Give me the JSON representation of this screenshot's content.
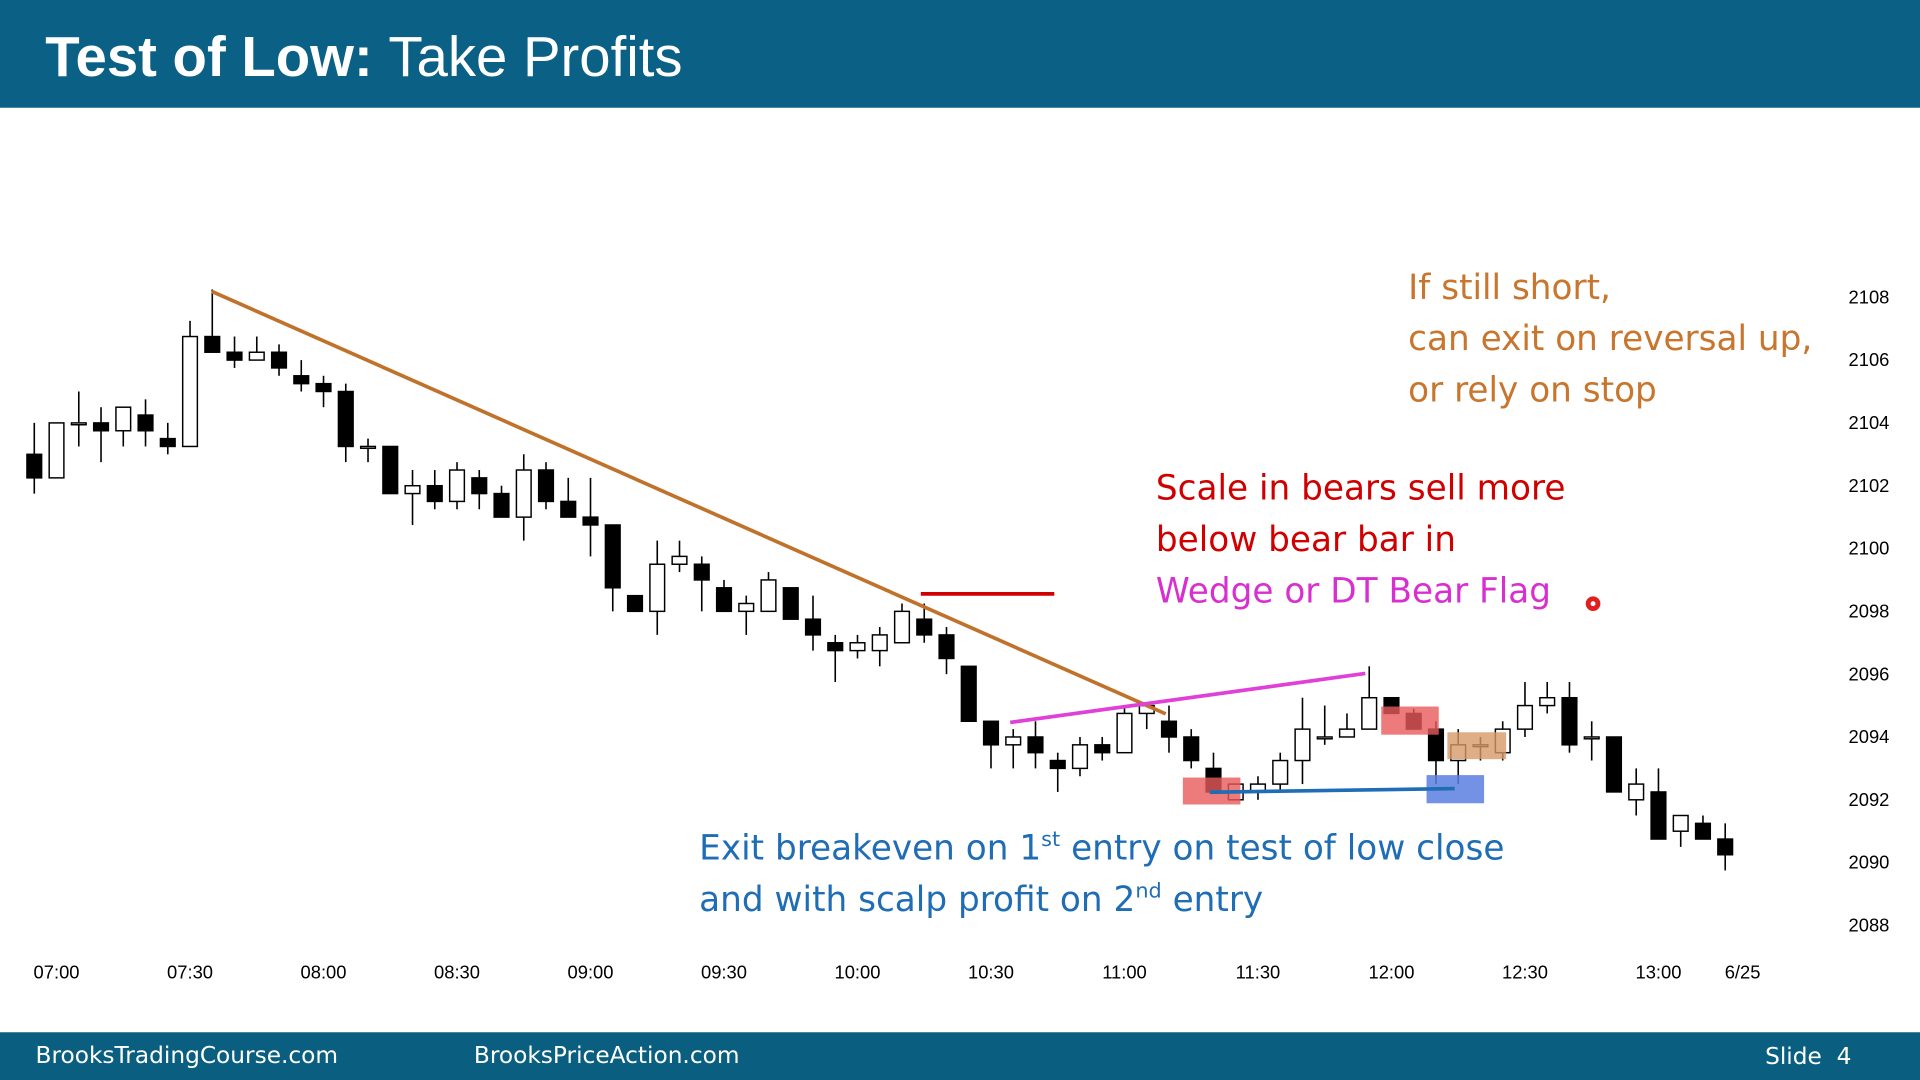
{
  "header": {
    "title_bold": "Test of Low:",
    "title_rest": "Take Profits"
  },
  "chart_data": {
    "type": "candlestick",
    "categories": [
      null,
      "07:00",
      null,
      null,
      null,
      null,
      null,
      "07:30",
      null,
      null,
      null,
      null,
      null,
      "08:00",
      null,
      null,
      null,
      null,
      null,
      "08:30",
      null,
      null,
      null,
      null,
      null,
      "09:00",
      null,
      null,
      null,
      null,
      null,
      "09:30",
      null,
      null,
      null,
      null,
      null,
      "10:00",
      null,
      null,
      null,
      null,
      null,
      "10:30",
      null,
      null,
      null,
      null,
      null,
      "11:00",
      null,
      null,
      null,
      null,
      null,
      "11:30",
      null,
      null,
      null,
      null,
      null,
      "12:00",
      null,
      null,
      null,
      null,
      null,
      "12:30",
      null,
      null,
      null,
      null,
      null,
      "13:00",
      null,
      null,
      null,
      "6/25"
    ],
    "open": [
      2103,
      2102.25,
      2104,
      2104,
      2103.75,
      2104.25,
      2103.5,
      2103.25,
      2106.75,
      2106.25,
      2106,
      2106.25,
      2105.5,
      2105.25,
      2105,
      2103.25,
      2103.25,
      2101.75,
      2102,
      2101.5,
      2102.25,
      2101.75,
      2101,
      2102.5,
      2101.5,
      2101,
      2100.75,
      2098.5,
      2098,
      2099.5,
      2099.5,
      2098.75,
      2098,
      2098,
      2098.75,
      2097.75,
      2097,
      2096.75,
      2096.75,
      2097,
      2097.75,
      2097.25,
      2096.25,
      2094.5,
      2093.75,
      2094,
      2093.25,
      2093,
      2093.75,
      2093.5,
      2094.75,
      2094.5,
      2094,
      2093,
      2092,
      2092.25,
      2092.5,
      2093.25,
      2094,
      2094,
      2094.25,
      2095.25,
      2094.75,
      2094.25,
      2093.25,
      2093.75,
      2093.5,
      2094.25,
      2095,
      2095.25,
      2094,
      2094,
      2092,
      2092.25,
      2091,
      2091.25,
      2090.75,
      null
    ],
    "high": [
      2104,
      2104,
      2105,
      2104.5,
      2104.5,
      2104.75,
      2104,
      2107.25,
      2108.25,
      2106.75,
      2106.75,
      2106.5,
      2106,
      2105.5,
      2105.25,
      2103.5,
      2103.25,
      2102.5,
      2102.5,
      2102.75,
      2102.5,
      2102,
      2103,
      2102.75,
      2102.25,
      2102.25,
      2100.75,
      2098.5,
      2100.25,
      2100.25,
      2099.75,
      2099,
      2098.5,
      2099.25,
      2098.75,
      2098.5,
      2097.25,
      2097.25,
      2097.5,
      2098.25,
      2098.25,
      2097.5,
      2096.25,
      2094.5,
      2094.25,
      2094.5,
      2093.5,
      2094,
      2094,
      2095,
      2095,
      2095,
      2094.25,
      2093.5,
      2092.5,
      2092.75,
      2093.5,
      2095.25,
      2095,
      2094.75,
      2096.25,
      2095.25,
      2094.9,
      2094.5,
      2094.25,
      2094,
      2094.5,
      2095.75,
      2095.75,
      2095.75,
      2094.5,
      2094,
      2093,
      2093,
      2091.5,
      2091.5,
      2091.25,
      null
    ],
    "low": [
      2101.75,
      2102.25,
      2103.25,
      2102.75,
      2103.25,
      2103.25,
      2103,
      2103.25,
      2106.25,
      2105.75,
      2106,
      2105.5,
      2105,
      2104.5,
      2102.75,
      2102.75,
      2101.75,
      2100.75,
      2101.25,
      2101.25,
      2101.25,
      2101,
      2100.25,
      2101.25,
      2101,
      2099.75,
      2098,
      2098,
      2097.25,
      2099.25,
      2098,
      2098,
      2097.25,
      2098,
      2097.75,
      2096.75,
      2095.75,
      2096.5,
      2096.25,
      2097,
      2097,
      2096,
      2094.5,
      2093,
      2093,
      2093,
      2092.25,
      2092.75,
      2093.25,
      2093.5,
      2094.25,
      2093.5,
      2093,
      2092.25,
      2092,
      2092,
      2092.25,
      2092.5,
      2093.75,
      2094,
      2094.25,
      2094.75,
      2094.25,
      2092.5,
      2092.5,
      2093.25,
      2093.25,
      2094,
      2094.75,
      2093.5,
      2093.25,
      2092.25,
      2091.5,
      2090.75,
      2090.5,
      2090.75,
      2089.75,
      null
    ],
    "close": [
      2102.25,
      2104,
      2104,
      2103.75,
      2104.5,
      2103.75,
      2103.25,
      2106.75,
      2106.25,
      2106,
      2106.25,
      2105.75,
      2105.25,
      2105,
      2103.25,
      2103.25,
      2101.75,
      2102,
      2101.5,
      2102.5,
      2101.75,
      2101,
      2102.5,
      2101.5,
      2101,
      2100.75,
      2098.75,
      2098,
      2099.5,
      2099.75,
      2099,
      2098,
      2098.25,
      2099,
      2097.75,
      2097.25,
      2096.75,
      2097,
      2097.25,
      2098,
      2097.25,
      2096.5,
      2094.5,
      2093.75,
      2094,
      2093.5,
      2093,
      2093.75,
      2093.5,
      2094.75,
      2095,
      2094,
      2093.25,
      2092.25,
      2092.5,
      2092.5,
      2093.25,
      2094.25,
      2094,
      2094.25,
      2095.25,
      2094.75,
      2094.25,
      2093.25,
      2093.75,
      2093.75,
      2094.25,
      2095,
      2095.25,
      2093.75,
      2094,
      2092.25,
      2092.5,
      2090.75,
      2091.5,
      2090.75,
      2090.25,
      null
    ],
    "up_color": "#ffffff",
    "down_color": "#000000",
    "ylim": [
      2087.25,
      2113.5
    ],
    "yticks": [
      2088,
      2090,
      2092,
      2094,
      2096,
      2098,
      2100,
      2102,
      2104,
      2106,
      2108
    ],
    "grid": false
  },
  "annotations": {
    "stop": [
      "If still short,",
      "can exit on reversal up,",
      "or rely on stop"
    ],
    "scale_in": [
      "Scale in bears sell more",
      "below bear bar in",
      "Wedge or DT Bear Flag"
    ],
    "exit_line1": [
      "Exit breakeven on 1",
      "st",
      " entry on test of low close"
    ],
    "exit_line2": [
      "and with scalp profit on 2",
      "nd",
      " entry"
    ]
  },
  "footer": {
    "left": "BrooksTradingCourse.com",
    "middle": "BrooksPriceAction.com",
    "right": "Slide  4"
  }
}
